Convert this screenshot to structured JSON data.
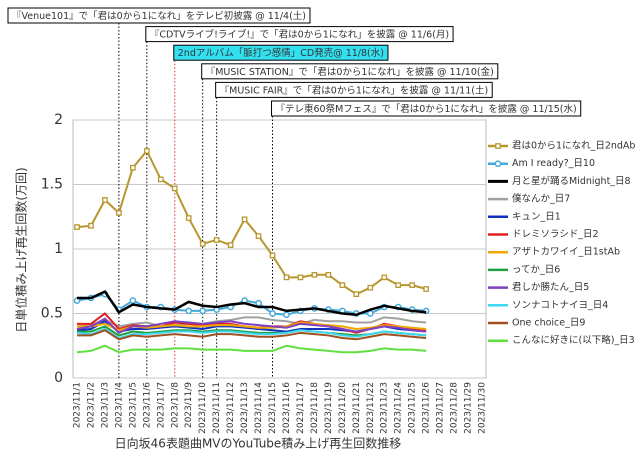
{
  "chart_data": {
    "type": "line",
    "ylabel": "日単位積み上げ再生回数(万回)",
    "xlabel": "日向坂46表題曲MVのYouTube積み上げ再生回数推移",
    "categories": [
      "2023/11/1",
      "2023/11/2",
      "2023/11/3",
      "2023/11/4",
      "2023/11/5",
      "2023/11/6",
      "2023/11/7",
      "2023/11/8",
      "2023/11/9",
      "2023/11/10",
      "2023/11/11",
      "2023/11/12",
      "2023/11/13",
      "2023/11/14",
      "2023/11/15",
      "2023/11/16",
      "2023/11/17",
      "2023/11/18",
      "2023/11/19",
      "2023/11/20",
      "2023/11/21",
      "2023/11/22",
      "2023/11/23",
      "2023/11/24",
      "2023/11/25",
      "2023/11/26",
      "2023/11/27",
      "2023/11/28",
      "2023/11/29",
      "2023/11/30"
    ],
    "ylim": [
      0,
      2
    ],
    "yticks": [
      0,
      0.5,
      1,
      1.5,
      2
    ],
    "grid": true,
    "annotations": [
      {
        "text": "『Venue101』で「君は0から1になれ」をテレビ初披露 @ 11/4(土)",
        "x": "2023/11/4",
        "color": "#ffffff",
        "line_color": "#000000"
      },
      {
        "text": "『CDTVライブ!ライブ!』で「君は0から1になれ」を披露 @ 11/6(月)",
        "x": "2023/11/6",
        "color": "#ffffff",
        "line_color": "#000000"
      },
      {
        "text": "2ndアルバム「脈打つ感情」CD発売@ 11/8(水)",
        "x": "2023/11/8",
        "color": "#33e0f0",
        "line_color": "#e03030"
      },
      {
        "text": "『MUSIC STATION』で「君は0から1になれ」を披露 @ 11/10(金)",
        "x": "2023/11/10",
        "color": "#ffffff",
        "line_color": "#000000"
      },
      {
        "text": "『MUSIC FAIR』で「君は0から1になれ」を披露 @ 11/11(土)",
        "x": "2023/11/11",
        "color": "#ffffff",
        "line_color": "#000000"
      },
      {
        "text": "『テレ東60祭Mフェス』で「君は0から1になれ」を披露 @ 11/15(水)",
        "x": "2023/11/15",
        "color": "#ffffff",
        "line_color": "#000000"
      }
    ],
    "series": [
      {
        "name": "君は0から1になれ_日2ndAb",
        "color": "#b8962e",
        "marker": "square",
        "values": [
          1.17,
          1.18,
          1.38,
          1.28,
          1.63,
          1.76,
          1.54,
          1.47,
          1.24,
          1.04,
          1.07,
          1.03,
          1.23,
          1.1,
          0.95,
          0.78,
          0.78,
          0.8,
          0.8,
          0.72,
          0.65,
          0.7,
          0.78,
          0.72,
          0.72,
          0.69,
          null,
          null,
          null,
          null
        ]
      },
      {
        "name": "Am I ready?_日10",
        "color": "#44aadd",
        "marker": "circle",
        "values": [
          0.6,
          0.62,
          0.65,
          0.53,
          0.6,
          0.55,
          0.55,
          0.53,
          0.52,
          0.52,
          0.53,
          0.55,
          0.6,
          0.58,
          0.5,
          0.49,
          0.52,
          0.54,
          0.53,
          0.52,
          0.5,
          0.5,
          0.55,
          0.55,
          0.53,
          0.52,
          null,
          null,
          null,
          null
        ]
      },
      {
        "name": "月と星が踊るMidnight_日8",
        "color": "#000000",
        "values": [
          0.62,
          0.62,
          0.67,
          0.51,
          0.57,
          0.55,
          0.54,
          0.53,
          0.59,
          0.56,
          0.55,
          0.57,
          0.58,
          0.55,
          0.55,
          0.52,
          0.53,
          0.54,
          0.52,
          0.5,
          0.49,
          0.53,
          0.56,
          0.54,
          0.52,
          0.51,
          null,
          null,
          null,
          null
        ]
      },
      {
        "name": "僕なんか_日7",
        "color": "#a0a0a0",
        "values": [
          0.4,
          0.41,
          0.45,
          0.4,
          0.42,
          0.43,
          0.4,
          0.41,
          0.42,
          0.42,
          0.44,
          0.45,
          0.47,
          0.47,
          0.45,
          0.44,
          0.42,
          0.45,
          0.44,
          0.44,
          0.43,
          0.43,
          0.47,
          0.46,
          0.44,
          0.43,
          null,
          null,
          null,
          null
        ]
      },
      {
        "name": "キュン_日1",
        "color": "#1030c0",
        "values": [
          0.37,
          0.38,
          0.44,
          0.36,
          0.38,
          0.38,
          0.39,
          0.4,
          0.39,
          0.38,
          0.4,
          0.4,
          0.39,
          0.38,
          0.37,
          0.36,
          0.38,
          0.38,
          0.38,
          0.37,
          0.36,
          0.38,
          0.4,
          0.38,
          0.37,
          0.36,
          null,
          null,
          null,
          null
        ]
      },
      {
        "name": "ドレミソラシド_日2",
        "color": "#e02020",
        "values": [
          0.42,
          0.42,
          0.5,
          0.38,
          0.41,
          0.4,
          0.4,
          0.43,
          0.42,
          0.41,
          0.42,
          0.42,
          0.4,
          0.39,
          0.4,
          0.4,
          0.44,
          0.42,
          0.4,
          0.38,
          0.35,
          0.38,
          0.42,
          0.4,
          0.38,
          0.37,
          null,
          null,
          null,
          null
        ]
      },
      {
        "name": "アザトカワイイ_日1stAb",
        "color": "#f0a800",
        "values": [
          0.4,
          0.4,
          0.42,
          0.37,
          0.4,
          0.39,
          0.4,
          0.41,
          0.4,
          0.4,
          0.41,
          0.41,
          0.4,
          0.39,
          0.39,
          0.4,
          0.43,
          0.42,
          0.41,
          0.4,
          0.38,
          0.39,
          0.41,
          0.4,
          0.39,
          0.38,
          null,
          null,
          null,
          null
        ]
      },
      {
        "name": "ってか_日6",
        "color": "#20a040",
        "values": [
          0.36,
          0.36,
          0.4,
          0.33,
          0.36,
          0.35,
          0.36,
          0.37,
          0.37,
          0.36,
          0.37,
          0.37,
          0.36,
          0.35,
          0.35,
          0.35,
          0.37,
          0.36,
          0.35,
          0.34,
          0.33,
          0.34,
          0.36,
          0.35,
          0.34,
          0.33,
          null,
          null,
          null,
          null
        ]
      },
      {
        "name": "君しか勝たん_日5",
        "color": "#8040c0",
        "values": [
          0.38,
          0.4,
          0.46,
          0.35,
          0.4,
          0.4,
          0.42,
          0.44,
          0.43,
          0.42,
          0.43,
          0.44,
          0.42,
          0.41,
          0.4,
          0.39,
          0.42,
          0.41,
          0.4,
          0.38,
          0.36,
          0.38,
          0.4,
          0.39,
          0.37,
          0.36,
          null,
          null,
          null,
          null
        ]
      },
      {
        "name": "ソンナコトナイヨ_日4",
        "color": "#40d8f0",
        "values": [
          0.35,
          0.34,
          0.38,
          0.31,
          0.34,
          0.34,
          0.35,
          0.36,
          0.36,
          0.35,
          0.36,
          0.36,
          0.35,
          0.34,
          0.34,
          0.35,
          0.37,
          0.36,
          0.35,
          0.33,
          0.32,
          0.34,
          0.36,
          0.35,
          0.34,
          0.33,
          null,
          null,
          null,
          null
        ]
      },
      {
        "name": "One choice_日9",
        "color": "#a05020",
        "values": [
          0.33,
          0.33,
          0.37,
          0.3,
          0.33,
          0.32,
          0.33,
          0.34,
          0.33,
          0.32,
          0.34,
          0.34,
          0.33,
          0.32,
          0.32,
          0.33,
          0.35,
          0.34,
          0.33,
          0.31,
          0.3,
          0.32,
          0.34,
          0.33,
          0.32,
          0.31,
          null,
          null,
          null,
          null
        ]
      },
      {
        "name": "こんなに好きに(以下略)_日3",
        "color": "#60e040",
        "values": [
          0.2,
          0.21,
          0.25,
          0.2,
          0.22,
          0.22,
          0.22,
          0.23,
          0.23,
          0.22,
          0.22,
          0.22,
          0.21,
          0.21,
          0.21,
          0.25,
          0.23,
          0.22,
          0.21,
          0.2,
          0.2,
          0.21,
          0.23,
          0.22,
          0.22,
          0.21,
          null,
          null,
          null,
          null
        ]
      }
    ]
  }
}
